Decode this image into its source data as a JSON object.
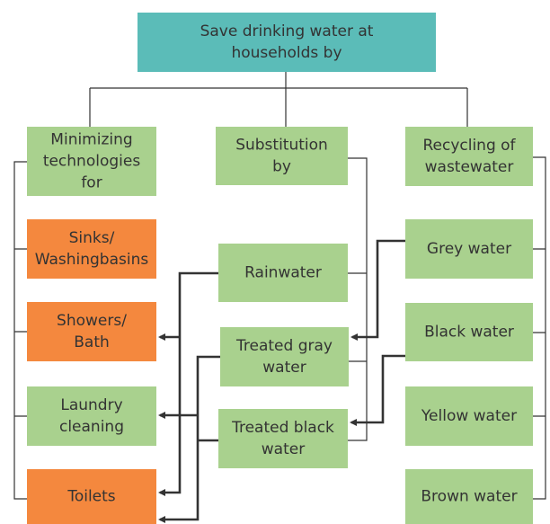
{
  "nodes": [
    {
      "label": [
        "Save drinking water at",
        "households by"
      ]
    },
    {
      "label": [
        "Minimizing",
        "technologies",
        "for"
      ]
    },
    {
      "label": [
        "Substitution",
        "by"
      ]
    },
    {
      "label": [
        "Recycling of",
        "wastewater"
      ]
    },
    {
      "label": [
        "Sinks/",
        "Washingbasins"
      ]
    },
    {
      "label": [
        "Showers/",
        "Bath"
      ]
    },
    {
      "label": [
        "Laundry",
        "cleaning"
      ]
    },
    {
      "label": [
        "Toilets"
      ]
    },
    {
      "label": [
        "Rainwater"
      ]
    },
    {
      "label": [
        "Treated gray",
        "water"
      ]
    },
    {
      "label": [
        "Treated black",
        "water"
      ]
    },
    {
      "label": [
        "Grey water"
      ]
    },
    {
      "label": [
        "Black water"
      ]
    },
    {
      "label": [
        "Yellow water"
      ]
    },
    {
      "label": [
        "Brown water"
      ]
    }
  ]
}
